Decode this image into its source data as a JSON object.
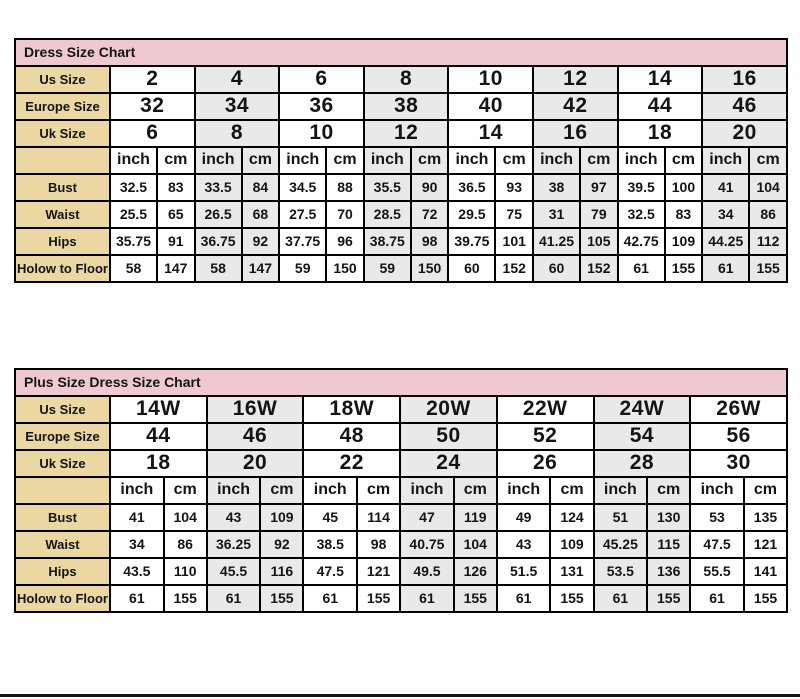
{
  "page": {
    "background": "#ffffff",
    "bottom_line_color": "#141414"
  },
  "colors": {
    "title_bg": "#efc9cf",
    "label_bg": "#ebd7a2",
    "alt_col_bg": "#e9e9e9",
    "base_col_bg": "#ffffff",
    "border": "#000000",
    "text": "#141414"
  },
  "chart_data": [
    {
      "type": "table",
      "title": "Dress Size Chart",
      "unit_labels": [
        "inch",
        "cm"
      ],
      "size_rows": [
        {
          "label": "Us Size",
          "values": [
            "2",
            "4",
            "6",
            "8",
            "10",
            "12",
            "14",
            "16"
          ]
        },
        {
          "label": "Europe Size",
          "values": [
            "32",
            "34",
            "36",
            "38",
            "40",
            "42",
            "44",
            "46"
          ]
        },
        {
          "label": "Uk Size",
          "values": [
            "6",
            "8",
            "10",
            "12",
            "14",
            "16",
            "18",
            "20"
          ]
        }
      ],
      "measure_rows": [
        {
          "label": "Bust",
          "pairs": [
            [
              "32.5",
              "83"
            ],
            [
              "33.5",
              "84"
            ],
            [
              "34.5",
              "88"
            ],
            [
              "35.5",
              "90"
            ],
            [
              "36.5",
              "93"
            ],
            [
              "38",
              "97"
            ],
            [
              "39.5",
              "100"
            ],
            [
              "41",
              "104"
            ]
          ]
        },
        {
          "label": "Waist",
          "pairs": [
            [
              "25.5",
              "65"
            ],
            [
              "26.5",
              "68"
            ],
            [
              "27.5",
              "70"
            ],
            [
              "28.5",
              "72"
            ],
            [
              "29.5",
              "75"
            ],
            [
              "31",
              "79"
            ],
            [
              "32.5",
              "83"
            ],
            [
              "34",
              "86"
            ]
          ]
        },
        {
          "label": "Hips",
          "pairs": [
            [
              "35.75",
              "91"
            ],
            [
              "36.75",
              "92"
            ],
            [
              "37.75",
              "96"
            ],
            [
              "38.75",
              "98"
            ],
            [
              "39.75",
              "101"
            ],
            [
              "41.25",
              "105"
            ],
            [
              "42.75",
              "109"
            ],
            [
              "44.25",
              "112"
            ]
          ]
        },
        {
          "label": "Holow to Floor",
          "pairs": [
            [
              "58",
              "147"
            ],
            [
              "58",
              "147"
            ],
            [
              "59",
              "150"
            ],
            [
              "59",
              "150"
            ],
            [
              "60",
              "152"
            ],
            [
              "60",
              "152"
            ],
            [
              "61",
              "155"
            ],
            [
              "61",
              "155"
            ]
          ]
        }
      ]
    },
    {
      "type": "table",
      "title": "Plus Size Dress Size Chart",
      "unit_labels": [
        "inch",
        "cm"
      ],
      "size_rows": [
        {
          "label": "Us Size",
          "values": [
            "14W",
            "16W",
            "18W",
            "20W",
            "22W",
            "24W",
            "26W"
          ]
        },
        {
          "label": "Europe Size",
          "values": [
            "44",
            "46",
            "48",
            "50",
            "52",
            "54",
            "56"
          ]
        },
        {
          "label": "Uk Size",
          "values": [
            "18",
            "20",
            "22",
            "24",
            "26",
            "28",
            "30"
          ]
        }
      ],
      "measure_rows": [
        {
          "label": "Bust",
          "pairs": [
            [
              "41",
              "104"
            ],
            [
              "43",
              "109"
            ],
            [
              "45",
              "114"
            ],
            [
              "47",
              "119"
            ],
            [
              "49",
              "124"
            ],
            [
              "51",
              "130"
            ],
            [
              "53",
              "135"
            ]
          ]
        },
        {
          "label": "Waist",
          "pairs": [
            [
              "34",
              "86"
            ],
            [
              "36.25",
              "92"
            ],
            [
              "38.5",
              "98"
            ],
            [
              "40.75",
              "104"
            ],
            [
              "43",
              "109"
            ],
            [
              "45.25",
              "115"
            ],
            [
              "47.5",
              "121"
            ]
          ]
        },
        {
          "label": "Hips",
          "pairs": [
            [
              "43.5",
              "110"
            ],
            [
              "45.5",
              "116"
            ],
            [
              "47.5",
              "121"
            ],
            [
              "49.5",
              "126"
            ],
            [
              "51.5",
              "131"
            ],
            [
              "53.5",
              "136"
            ],
            [
              "55.5",
              "141"
            ]
          ]
        },
        {
          "label": "Holow to Floor",
          "pairs": [
            [
              "61",
              "155"
            ],
            [
              "61",
              "155"
            ],
            [
              "61",
              "155"
            ],
            [
              "61",
              "155"
            ],
            [
              "61",
              "155"
            ],
            [
              "61",
              "155"
            ],
            [
              "61",
              "155"
            ]
          ]
        }
      ]
    }
  ]
}
